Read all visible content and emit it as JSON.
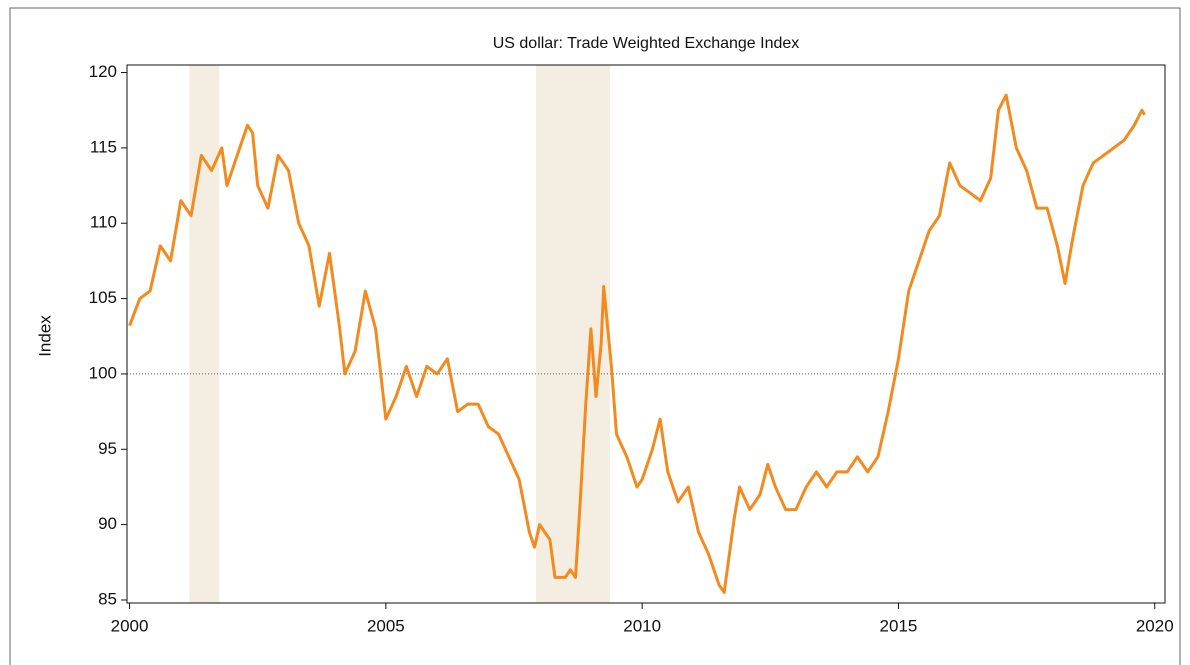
{
  "chart_data": {
    "type": "line",
    "title": "US dollar: Trade Weighted Exchange Index",
    "ylabel": "Index",
    "xlim": [
      1999.95,
      2020.2
    ],
    "ylim": [
      84.8,
      120.5
    ],
    "xticks": [
      2000,
      2005,
      2010,
      2015,
      2020
    ],
    "yticks": [
      85,
      90,
      95,
      100,
      105,
      110,
      115,
      120
    ],
    "reference_line": 100,
    "shading": [
      [
        2001.17,
        2001.75
      ],
      [
        2007.93,
        2009.37
      ]
    ],
    "shading_color": "#f3ede2",
    "series": [
      {
        "color": "#f28a1e",
        "x": [
          2000.0,
          2000.2,
          2000.4,
          2000.6,
          2000.8,
          2001.0,
          2001.2,
          2001.4,
          2001.6,
          2001.8,
          2001.9,
          2002.1,
          2002.3,
          2002.4,
          2002.5,
          2002.7,
          2002.9,
          2003.1,
          2003.3,
          2003.5,
          2003.7,
          2003.9,
          2004.1,
          2004.2,
          2004.4,
          2004.6,
          2004.8,
          2004.9,
          2005.0,
          2005.2,
          2005.4,
          2005.6,
          2005.8,
          2006.0,
          2006.2,
          2006.4,
          2006.6,
          2006.8,
          2007.0,
          2007.2,
          2007.4,
          2007.6,
          2007.8,
          2007.9,
          2008.0,
          2008.2,
          2008.3,
          2008.5,
          2008.6,
          2008.7,
          2008.8,
          2008.9,
          2009.0,
          2009.1,
          2009.2,
          2009.25,
          2009.4,
          2009.5,
          2009.7,
          2009.9,
          2010.0,
          2010.2,
          2010.35,
          2010.5,
          2010.7,
          2010.9,
          2011.1,
          2011.3,
          2011.5,
          2011.6,
          2011.8,
          2011.9,
          2012.1,
          2012.3,
          2012.45,
          2012.6,
          2012.8,
          2013.0,
          2013.2,
          2013.4,
          2013.6,
          2013.8,
          2014.0,
          2014.2,
          2014.4,
          2014.6,
          2014.8,
          2015.0,
          2015.2,
          2015.4,
          2015.6,
          2015.8,
          2016.0,
          2016.2,
          2016.4,
          2016.6,
          2016.8,
          2016.95,
          2017.1,
          2017.3,
          2017.5,
          2017.7,
          2017.9,
          2018.1,
          2018.25,
          2018.4,
          2018.6,
          2018.8,
          2019.0,
          2019.2,
          2019.4,
          2019.6,
          2019.75,
          2019.8
        ],
        "values": [
          103.2,
          105.0,
          105.5,
          108.5,
          107.5,
          111.5,
          110.5,
          114.5,
          113.5,
          115.0,
          112.5,
          114.5,
          116.5,
          116.0,
          112.5,
          111.0,
          114.5,
          113.5,
          110.0,
          108.5,
          104.5,
          108.0,
          103.0,
          100.0,
          101.5,
          105.5,
          103.0,
          100.0,
          97.0,
          98.5,
          100.5,
          98.5,
          100.5,
          100.0,
          101.0,
          97.5,
          98.0,
          98.0,
          96.5,
          96.0,
          94.5,
          93.0,
          89.5,
          88.5,
          90.0,
          89.0,
          86.5,
          86.5,
          87.0,
          86.5,
          92.0,
          98.0,
          103.0,
          98.5,
          102.0,
          105.8,
          100.5,
          96.0,
          94.5,
          92.5,
          93.0,
          95.0,
          97.0,
          93.5,
          91.5,
          92.5,
          89.5,
          88.0,
          86.0,
          85.5,
          90.5,
          92.5,
          91.0,
          92.0,
          94.0,
          92.5,
          91.0,
          91.0,
          92.5,
          93.5,
          92.5,
          93.5,
          93.5,
          94.5,
          93.5,
          94.5,
          97.5,
          101.0,
          105.5,
          107.5,
          109.5,
          110.5,
          114.0,
          112.5,
          112.0,
          111.5,
          113.0,
          117.5,
          118.5,
          115.0,
          113.5,
          111.0,
          111.0,
          108.5,
          106.0,
          109.0,
          112.5,
          114.0,
          114.5,
          115.0,
          115.5,
          116.5,
          117.5,
          117.2
        ]
      }
    ]
  }
}
